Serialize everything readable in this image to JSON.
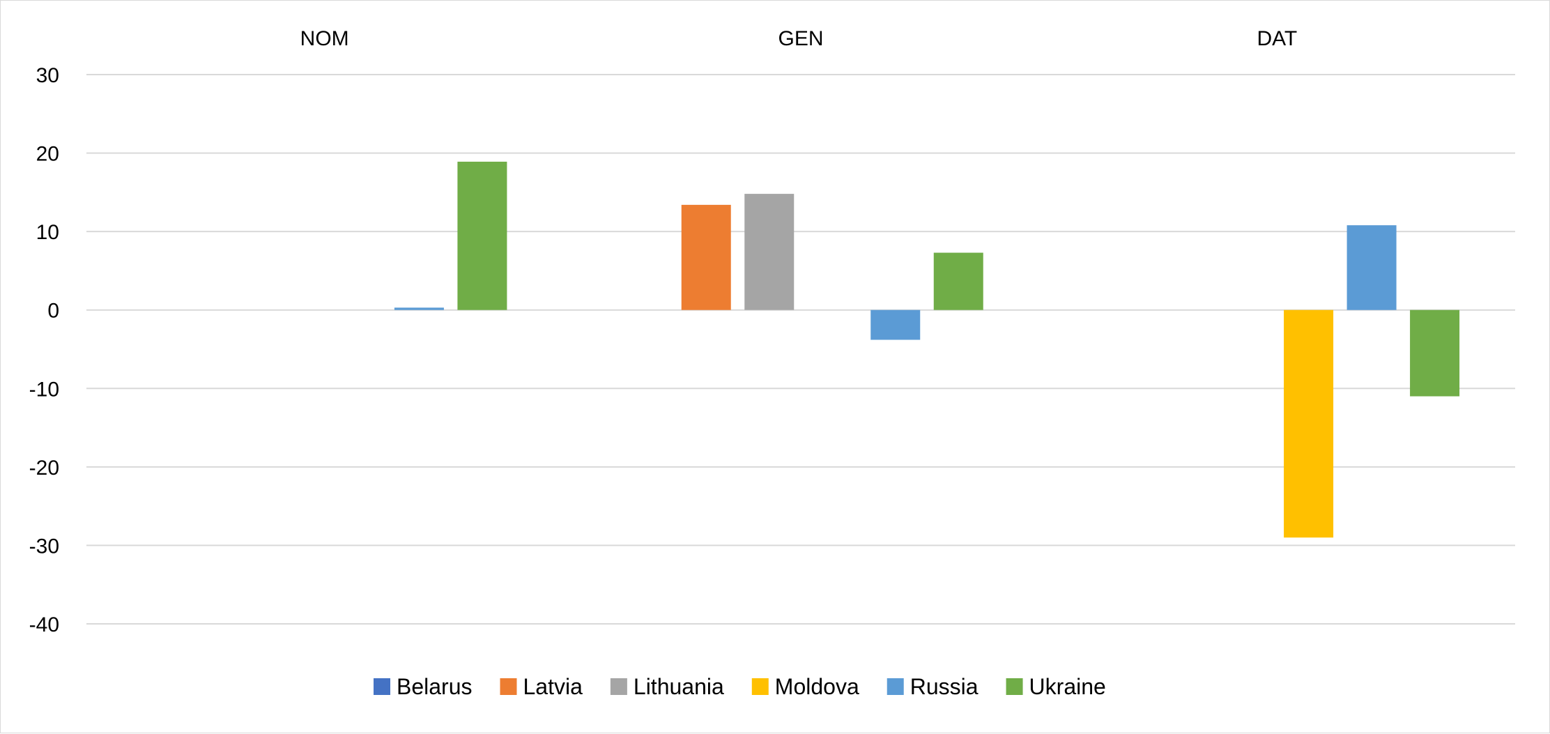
{
  "chart_data": {
    "type": "bar",
    "categories": [
      "NOM",
      "GEN",
      "DAT"
    ],
    "series": [
      {
        "name": "Belarus",
        "color": "#4472c4",
        "values": [
          null,
          null,
          null
        ]
      },
      {
        "name": "Latvia",
        "color": "#ed7d31",
        "values": [
          null,
          13.4,
          null
        ]
      },
      {
        "name": "Lithuania",
        "color": "#a5a5a5",
        "values": [
          null,
          14.8,
          null
        ]
      },
      {
        "name": "Moldova",
        "color": "#ffc000",
        "values": [
          null,
          null,
          -29.0
        ]
      },
      {
        "name": "Russia",
        "color": "#5b9bd5",
        "values": [
          0.3,
          -3.8,
          10.8
        ]
      },
      {
        "name": "Ukraine",
        "color": "#70ad47",
        "values": [
          18.9,
          7.3,
          -11.0
        ]
      }
    ],
    "y_ticks": [
      "30",
      "20",
      "10",
      "0",
      "-10",
      "-20",
      "-30",
      "-40"
    ],
    "ylim": [
      -40,
      30
    ],
    "grid": true,
    "category_labels_position": "top",
    "legend_position": "bottom",
    "title": "",
    "xlabel": "",
    "ylabel": ""
  }
}
